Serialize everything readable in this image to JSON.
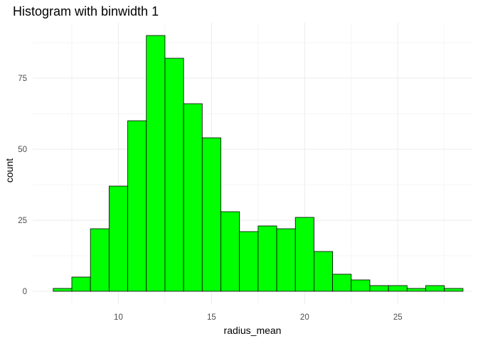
{
  "chart_data": {
    "type": "histogram",
    "title": "Histogram with binwidth 1",
    "xlabel": "radius_mean",
    "ylabel": "count",
    "binwidth": 1,
    "bin_starts": [
      6.5,
      7.5,
      8.5,
      9.5,
      10.5,
      11.5,
      12.5,
      13.5,
      14.5,
      15.5,
      16.5,
      17.5,
      18.5,
      19.5,
      20.5,
      21.5,
      22.5,
      23.5,
      24.5,
      25.5,
      26.5,
      27.5
    ],
    "values": [
      1,
      5,
      22,
      37,
      60,
      90,
      82,
      66,
      54,
      28,
      21,
      23,
      22,
      26,
      14,
      6,
      4,
      2,
      2,
      1,
      2,
      1
    ],
    "xlim": [
      5.4,
      29.0
    ],
    "ylim": [
      -4.5,
      94.5
    ],
    "x_ticks": [
      10,
      15,
      20,
      25
    ],
    "x_tick_labels": [
      "10",
      "15",
      "20",
      "25"
    ],
    "y_ticks": [
      0,
      25,
      50,
      75
    ],
    "y_tick_labels": [
      "0",
      "25",
      "50",
      "75"
    ],
    "bar_color": "#00ff00",
    "bar_outline": "#000000",
    "grid": true,
    "legend": "none"
  }
}
